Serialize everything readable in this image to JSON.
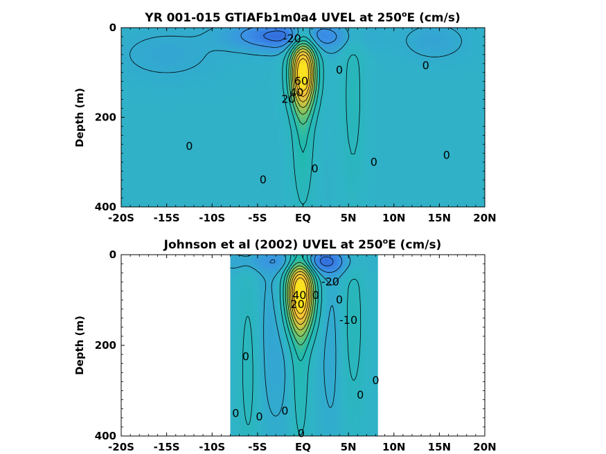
{
  "chart_data": [
    {
      "type": "heatmap",
      "title": "YR 001-015 GTIAFb1m0a4 UVEL at 250",
      "title_sup": "o",
      "title_tail": "E (cm/s)",
      "ylabel": "Depth (m)",
      "xlabel": "",
      "xlim": [
        -20,
        20
      ],
      "ylim": [
        400,
        0
      ],
      "y_reversed": true,
      "xticks": [
        -20,
        -15,
        -10,
        -5,
        0,
        5,
        10,
        15,
        20
      ],
      "xtick_labels": [
        "-20S",
        "-15S",
        "-10S",
        "-5S",
        "EQ",
        "5N",
        "10N",
        "15N",
        "20N"
      ],
      "yticks": [
        0,
        200,
        400
      ],
      "ytick_labels": [
        "0",
        "200",
        "400"
      ],
      "data_extent": [
        -20,
        20
      ],
      "colormap": [
        "#2e5bd9",
        "#3b8fe6",
        "#2fb4c6",
        "#21b9ad",
        "#71c46a",
        "#c9c43f",
        "#f7bf3a",
        "#fbe31f"
      ],
      "background_value": 3,
      "features": [
        {
          "x": 0,
          "y": 100,
          "sx": 1.0,
          "sy": 55,
          "amp": 85
        },
        {
          "x": 0,
          "y": 230,
          "sx": 0.8,
          "sy": 120,
          "amp": 18
        },
        {
          "x": -0.5,
          "y": 20,
          "sx": 4,
          "sy": 22,
          "amp": -24
        },
        {
          "x": -4.5,
          "y": 15,
          "sx": 3,
          "sy": 20,
          "amp": -8
        },
        {
          "x": 5.5,
          "y": 150,
          "sx": 0.9,
          "sy": 160,
          "amp": 10
        },
        {
          "x": 14.5,
          "y": 30,
          "sx": 2.5,
          "sy": 30,
          "amp": -6
        },
        {
          "x": -15,
          "y": 60,
          "sx": 4,
          "sy": 40,
          "amp": -5
        }
      ],
      "contour_labels": [
        {
          "text": "-20",
          "x": -1.2,
          "y": 25
        },
        {
          "text": "0",
          "x": 4.0,
          "y": 95
        },
        {
          "text": "0",
          "x": 13.5,
          "y": 85
        },
        {
          "text": "0",
          "x": -12.5,
          "y": 265
        },
        {
          "text": "0",
          "x": -4.4,
          "y": 340
        },
        {
          "text": "0",
          "x": 1.3,
          "y": 315
        },
        {
          "text": "0",
          "x": 7.8,
          "y": 300
        },
        {
          "text": "0",
          "x": 15.8,
          "y": 285
        },
        {
          "text": "40",
          "x": -0.7,
          "y": 145
        },
        {
          "text": "60",
          "x": -0.2,
          "y": 120
        },
        {
          "text": "20",
          "x": -1.6,
          "y": 160
        }
      ]
    },
    {
      "type": "heatmap",
      "title": "Johnson et al (2002) UVEL at 250",
      "title_sup": "o",
      "title_tail": "E (cm/s)",
      "ylabel": "Depth (m)",
      "xlabel": "",
      "xlim": [
        -20,
        20
      ],
      "ylim": [
        400,
        0
      ],
      "y_reversed": true,
      "xticks": [
        -20,
        -15,
        -10,
        -5,
        0,
        5,
        10,
        15,
        20
      ],
      "xtick_labels": [
        "-20S",
        "-15S",
        "-10S",
        "-5S",
        "EQ",
        "5N",
        "10N",
        "15N",
        "20N"
      ],
      "yticks": [
        0,
        200,
        400
      ],
      "ytick_labels": [
        "0",
        "200",
        "400"
      ],
      "data_extent": [
        -8,
        8.2
      ],
      "colormap": [
        "#2e5bd9",
        "#3b8fe6",
        "#2fb4c6",
        "#21b9ad",
        "#71c46a",
        "#c9c43f",
        "#f7bf3a",
        "#fbe31f"
      ],
      "background_value": 3,
      "features": [
        {
          "x": -0.3,
          "y": 85,
          "sx": 1.1,
          "sy": 60,
          "amp": 90
        },
        {
          "x": -0.3,
          "y": 240,
          "sx": 0.7,
          "sy": 140,
          "amp": 14
        },
        {
          "x": 1.5,
          "y": 15,
          "sx": 2.5,
          "sy": 20,
          "amp": -28
        },
        {
          "x": -6,
          "y": 250,
          "sx": 0.8,
          "sy": 160,
          "amp": 10
        },
        {
          "x": 5.5,
          "y": 150,
          "sx": 1.0,
          "sy": 160,
          "amp": 10
        },
        {
          "x": -3,
          "y": 180,
          "sx": 1.5,
          "sy": 150,
          "amp": -6
        },
        {
          "x": 3.2,
          "y": 200,
          "sx": 1.0,
          "sy": 150,
          "amp": -5
        },
        {
          "x": -5,
          "y": 15,
          "sx": 3,
          "sy": 15,
          "amp": -8
        }
      ],
      "contour_labels": [
        {
          "text": "-20",
          "x": 3.0,
          "y": 60
        },
        {
          "text": "0",
          "x": 4.0,
          "y": 100
        },
        {
          "text": "-10",
          "x": 5.0,
          "y": 145
        },
        {
          "text": "0",
          "x": -6.3,
          "y": 225
        },
        {
          "text": "0",
          "x": 8.0,
          "y": 278
        },
        {
          "text": "0",
          "x": 6.3,
          "y": 310
        },
        {
          "text": "0",
          "x": -7.4,
          "y": 350
        },
        {
          "text": "0",
          "x": -4.8,
          "y": 358
        },
        {
          "text": "0",
          "x": -2.0,
          "y": 345
        },
        {
          "text": "0",
          "x": -0.2,
          "y": 395
        },
        {
          "text": "0",
          "x": 1.4,
          "y": 90
        },
        {
          "text": "20",
          "x": -0.6,
          "y": 110
        },
        {
          "text": "40",
          "x": -0.4,
          "y": 90
        }
      ]
    }
  ]
}
